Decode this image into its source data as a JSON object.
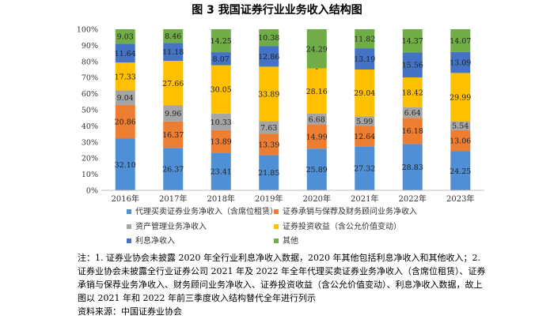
{
  "figure_title": "图 3    我国证券行业业务收入结构图",
  "notes": [
    "注：1. 证券业协会未披露 2020 年全行业利息净收入数据，2020 年其他包括利息净收入和其他收入；2. 证券业协会未披露全行业证券公司 2021 年及 2022 年全年代理买卖证券业务净收入（含席位租赁）、证券承销与保荐业务净收入、财务顾问业务净收入、证券投资收益（含公允价值变动）、利息净收入数据，故上图以 2021 年和 2022 年前三季度收入结构替代全年进行列示",
    "资料来源：中国证券业协会"
  ],
  "chart_data": {
    "type": "bar",
    "stacked": true,
    "categories": [
      "2016年",
      "2017年",
      "2018年",
      "2019年",
      "2020年",
      "2021年",
      "2022年",
      "2023年"
    ],
    "ylim": [
      0,
      100
    ],
    "yticks": [
      "0%",
      "10%",
      "20%",
      "30%",
      "40%",
      "50%",
      "60%",
      "70%",
      "80%",
      "90%",
      "100%"
    ],
    "grid": false,
    "legend_position": "bottom",
    "series": [
      {
        "name": "代理买卖证券业务净收入（含席位租赁）",
        "color": "#4f8fd6",
        "values": [
          32.1,
          26.37,
          23.41,
          21.85,
          25.89,
          27.32,
          28.83,
          24.25
        ],
        "labels": [
          "32.10",
          "26.37",
          "23.41",
          "21.85",
          "25.89",
          "27.32",
          "28.83",
          "24.25"
        ]
      },
      {
        "name": "证券承销与保荐及财务顾问业务净收入",
        "color": "#ed7d31",
        "values": [
          20.86,
          16.37,
          13.89,
          13.39,
          14.99,
          12.64,
          16.18,
          13.06
        ],
        "labels": [
          "20.86",
          "16.37",
          "13.89",
          "13.39",
          "14.99",
          "12.64",
          "16.18",
          "13.06"
        ]
      },
      {
        "name": "资产管理业务净收入",
        "color": "#a5a5a5",
        "values": [
          9.04,
          9.96,
          10.33,
          7.63,
          6.68,
          5.99,
          6.64,
          5.54
        ],
        "labels": [
          "9.04",
          "9.96",
          "10.33",
          "7.63",
          "6.68",
          "5.99",
          "6.64",
          "5.54"
        ]
      },
      {
        "name": "证券投资收益（含公允价值变动）",
        "color": "#ffc000",
        "values": [
          17.33,
          27.66,
          30.05,
          33.89,
          28.16,
          29.04,
          18.42,
          29.99
        ],
        "labels": [
          "17.33",
          "27.66",
          "30.05",
          "33.89",
          "28.16",
          "29.04",
          "18.42",
          "29.99"
        ]
      },
      {
        "name": "利息净收入",
        "color": "#4472c4",
        "values": [
          11.64,
          11.18,
          8.07,
          12.86,
          0,
          13.19,
          15.56,
          13.09
        ],
        "labels": [
          "11.64",
          "11.18",
          "8.07",
          "12.86",
          "-",
          "13.19",
          "15.56",
          "13.09"
        ]
      },
      {
        "name": "其他",
        "color": "#70ad47",
        "values": [
          9.03,
          8.46,
          14.25,
          10.38,
          24.29,
          11.82,
          14.37,
          14.07
        ],
        "labels": [
          "9.03",
          "8.46",
          "14.25",
          "10.38",
          "24.29",
          "11.82",
          "14.37",
          "14.07"
        ]
      }
    ],
    "legend_order": [
      0,
      1,
      2,
      3,
      4,
      5
    ]
  }
}
